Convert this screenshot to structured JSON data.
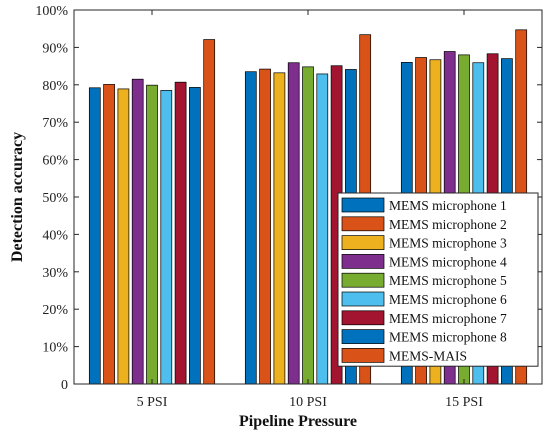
{
  "chart_data": {
    "type": "bar",
    "title": "",
    "xlabel": "Pipeline Pressure",
    "ylabel": "Detection accuracy",
    "ylim": [
      0,
      100
    ],
    "yticks": [
      0,
      10,
      20,
      30,
      40,
      50,
      60,
      70,
      80,
      90,
      100
    ],
    "ytick_labels": [
      "0",
      "10%",
      "20%",
      "30%",
      "40%",
      "50%",
      "60%",
      "70%",
      "80%",
      "90%",
      "100%"
    ],
    "categories": [
      "5 PSI",
      "10 PSI",
      "15 PSI"
    ],
    "grid": false,
    "legend_position": "bottom-right",
    "series": [
      {
        "name": "MEMS microphone 1",
        "color": "#0072BD",
        "values": [
          79.2,
          83.5,
          86.0
        ]
      },
      {
        "name": "MEMS microphone 2",
        "color": "#D95319",
        "values": [
          80.1,
          84.2,
          87.3
        ]
      },
      {
        "name": "MEMS microphone 3",
        "color": "#EDB120",
        "values": [
          78.9,
          83.2,
          86.7
        ]
      },
      {
        "name": "MEMS microphone 4",
        "color": "#7E2F8E",
        "values": [
          81.5,
          85.9,
          88.9
        ]
      },
      {
        "name": "MEMS microphone 5",
        "color": "#77AC30",
        "values": [
          79.9,
          84.8,
          88.0
        ]
      },
      {
        "name": "MEMS microphone 6",
        "color": "#4DBEEE",
        "values": [
          78.5,
          82.9,
          85.9
        ]
      },
      {
        "name": "MEMS microphone 7",
        "color": "#A2142F",
        "values": [
          80.7,
          85.1,
          88.3
        ]
      },
      {
        "name": "MEMS microphone 8",
        "color": "#0072BD",
        "values": [
          79.3,
          84.1,
          87.0
        ]
      },
      {
        "name": "MEMS-MAIS",
        "color": "#D95319",
        "values": [
          92.1,
          93.4,
          94.7
        ]
      }
    ]
  }
}
